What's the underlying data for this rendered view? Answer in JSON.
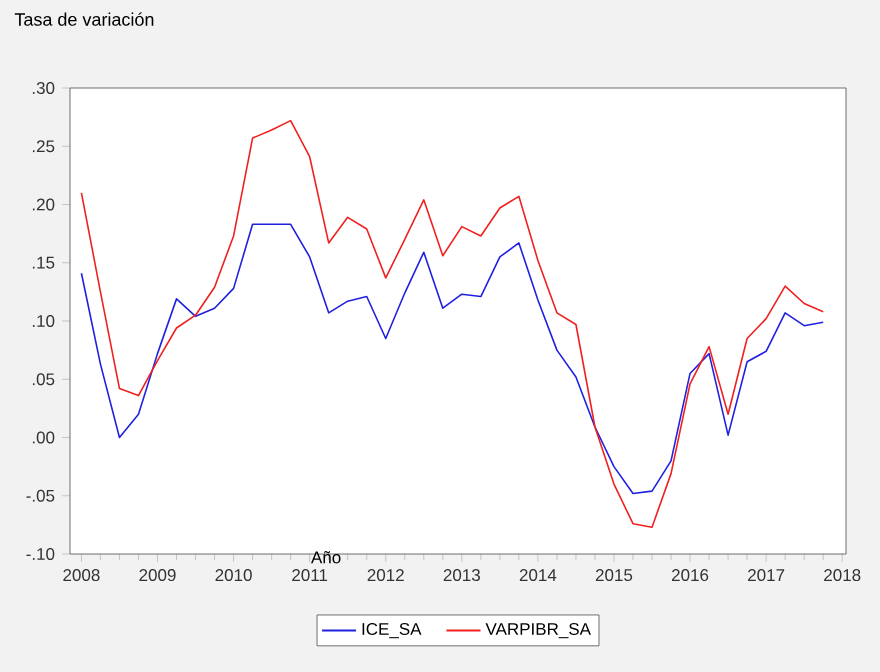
{
  "chart_data": {
    "type": "line",
    "title": "Tasa de variación",
    "xlabel": "Año",
    "x": [
      2008.0,
      2008.25,
      2008.5,
      2008.75,
      2009.0,
      2009.25,
      2009.5,
      2009.75,
      2010.0,
      2010.25,
      2010.5,
      2010.75,
      2011.0,
      2011.25,
      2011.5,
      2011.75,
      2012.0,
      2012.25,
      2012.5,
      2012.75,
      2013.0,
      2013.25,
      2013.5,
      2013.75,
      2014.0,
      2014.25,
      2014.5,
      2014.75,
      2015.0,
      2015.25,
      2015.5,
      2015.75,
      2016.0,
      2016.25,
      2016.5,
      2016.75,
      2017.0,
      2017.25,
      2017.5,
      2017.75
    ],
    "series": [
      {
        "name": "ICE_SA",
        "color": "#2020e0",
        "values": [
          0.141,
          0.063,
          0.0,
          0.02,
          0.072,
          0.119,
          0.104,
          0.111,
          0.128,
          0.183,
          0.183,
          0.183,
          0.155,
          0.107,
          0.117,
          0.121,
          0.085,
          0.124,
          0.159,
          0.111,
          0.123,
          0.121,
          0.155,
          0.167,
          0.118,
          0.075,
          0.052,
          0.009,
          -0.025,
          -0.048,
          -0.046,
          -0.02,
          0.055,
          0.072,
          0.002,
          0.065,
          0.074,
          0.107,
          0.096,
          0.099
        ]
      },
      {
        "name": "VARPIBR_SA",
        "color": "#f02020",
        "values": [
          0.21,
          0.125,
          0.042,
          0.036,
          0.066,
          0.094,
          0.105,
          0.129,
          0.173,
          0.257,
          0.264,
          0.272,
          0.241,
          0.167,
          0.189,
          0.179,
          0.137,
          0.17,
          0.204,
          0.156,
          0.181,
          0.173,
          0.197,
          0.207,
          0.152,
          0.107,
          0.097,
          0.009,
          -0.04,
          -0.074,
          -0.077,
          -0.031,
          0.046,
          0.078,
          0.02,
          0.085,
          0.102,
          0.13,
          0.115,
          0.108
        ]
      }
    ],
    "xlim": [
      2007.85,
      2018.05
    ],
    "xticks": [
      2008,
      2009,
      2010,
      2011,
      2012,
      2013,
      2014,
      2015,
      2016,
      2017,
      2018
    ],
    "ylim": [
      -0.1,
      0.3
    ],
    "yticks": [
      {
        "value": -0.1,
        "label": "-.10"
      },
      {
        "value": -0.05,
        "label": "-.05"
      },
      {
        "value": 0,
        "label": ".00"
      },
      {
        "value": 0.05,
        "label": ".05"
      },
      {
        "value": 0.1,
        "label": ".10"
      },
      {
        "value": 0.15,
        "label": ".15"
      },
      {
        "value": 0.2,
        "label": ".20"
      },
      {
        "value": 0.25,
        "label": ".25"
      },
      {
        "value": 0.3,
        "label": ".30"
      }
    ],
    "grid": false,
    "legend": "bottom",
    "marker": "none",
    "line_style": "solid"
  }
}
